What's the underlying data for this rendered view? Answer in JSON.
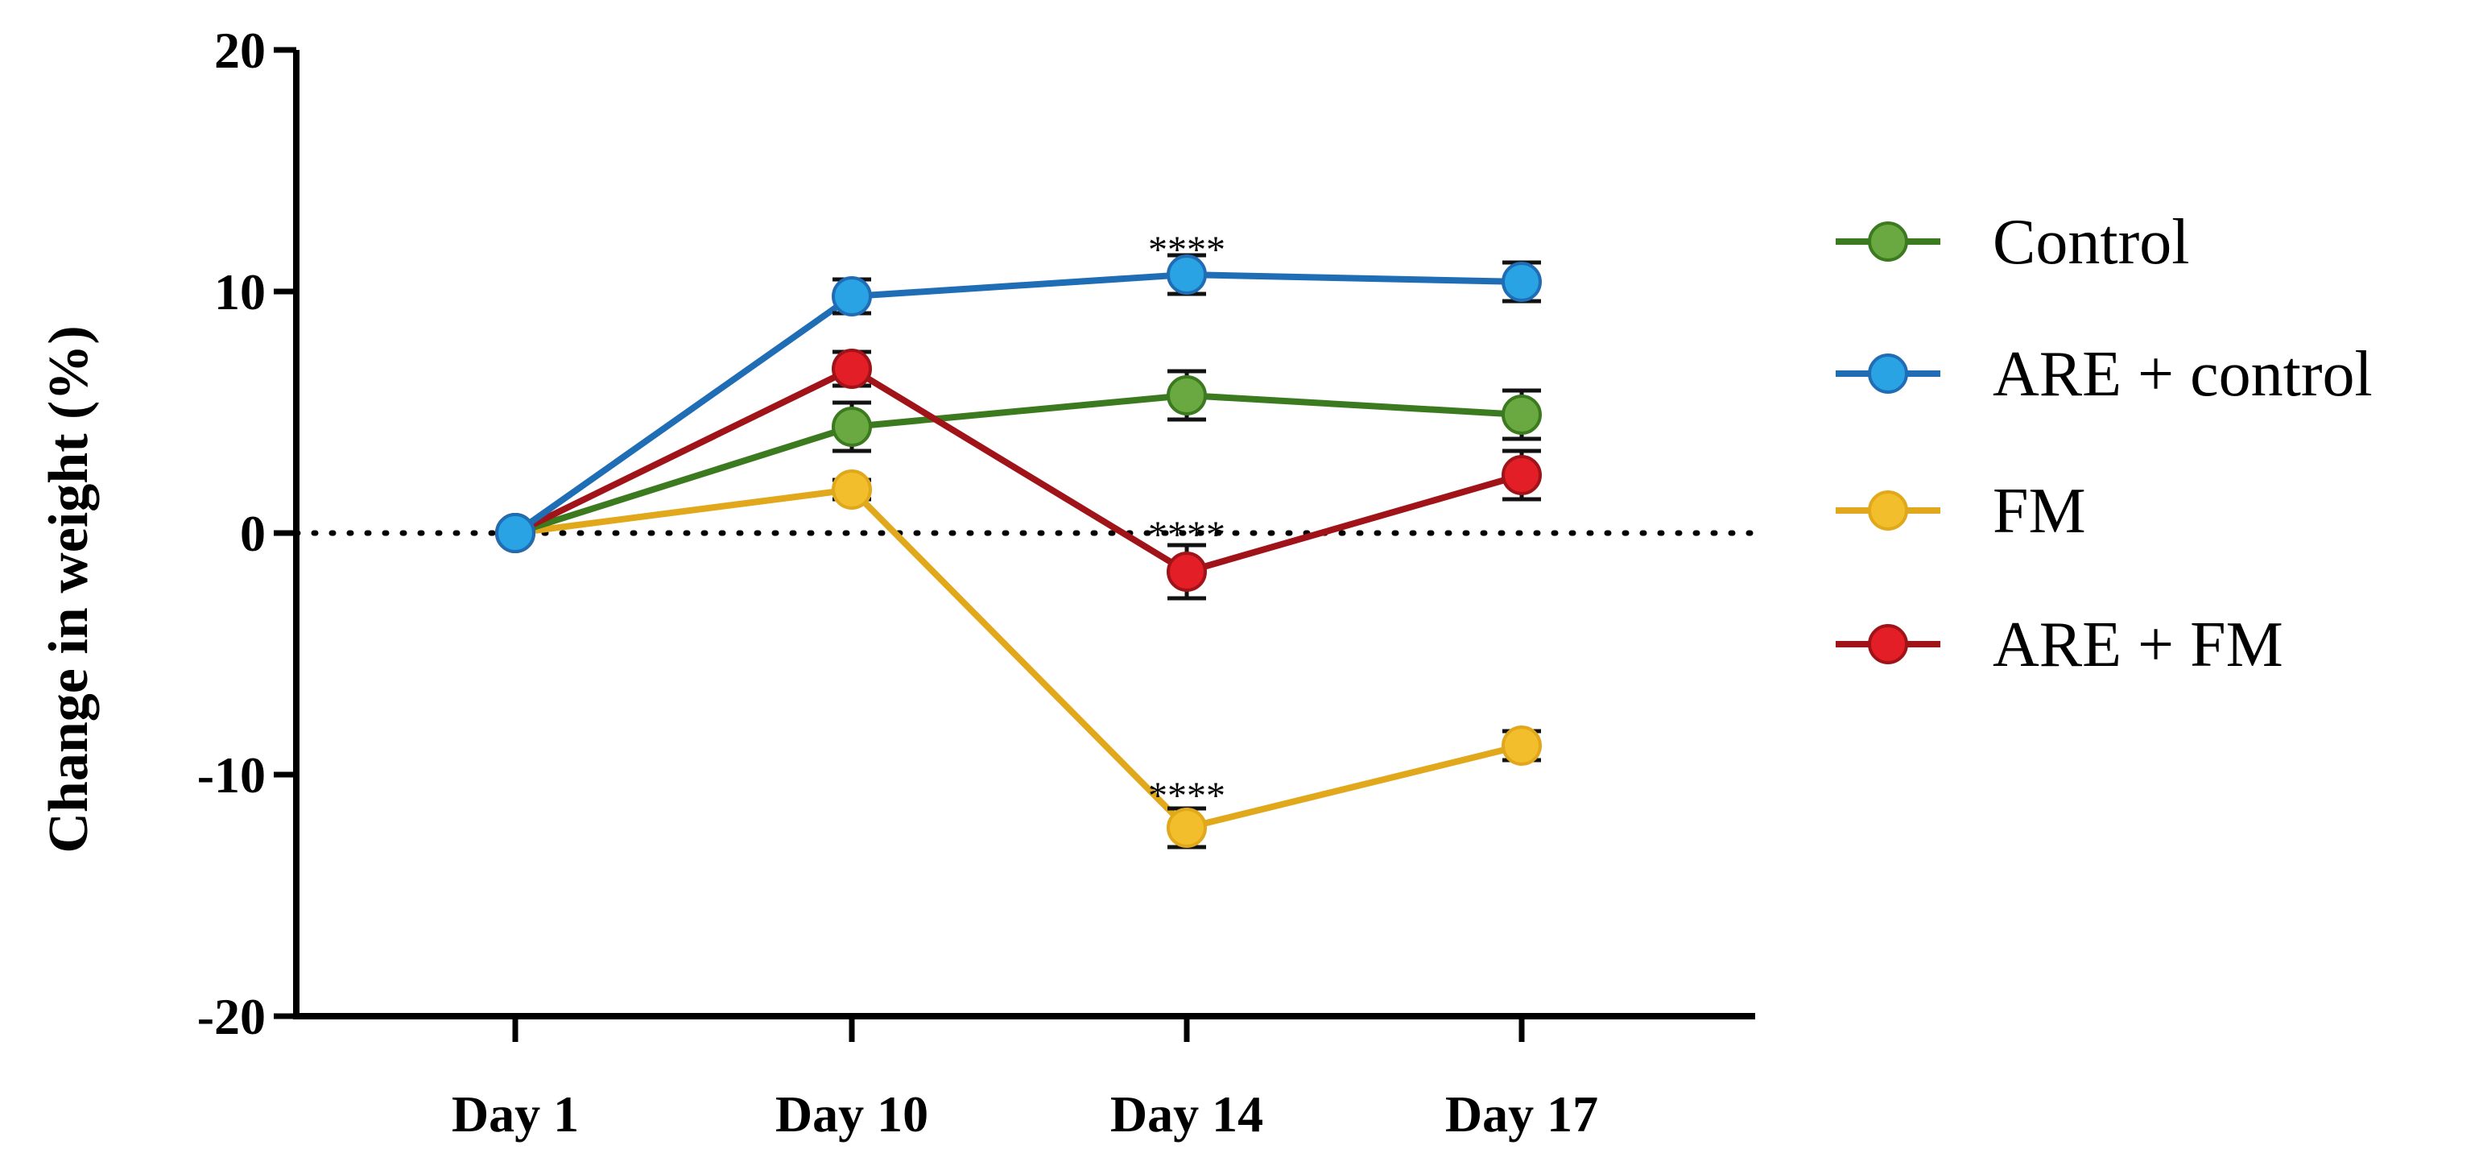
{
  "chart_data": {
    "type": "line",
    "title": "",
    "xlabel": "",
    "ylabel": "Change in weight (%)",
    "categories": [
      "Day 1",
      "Day 10",
      "Day 14",
      "Day 17"
    ],
    "ylim": [
      -20,
      20
    ],
    "yticks": [
      20,
      10,
      0,
      -10,
      -20
    ],
    "ytick_labels": [
      "20",
      "10",
      "0",
      "-10",
      "-20"
    ],
    "grid": false,
    "reference_line": 0,
    "legend_position": "right",
    "series": [
      {
        "name": "Control",
        "line_color": "#3b7a1e",
        "marker_color": "#6aa842",
        "values": [
          0,
          4.4,
          5.7,
          4.9
        ],
        "errors": [
          0,
          1.0,
          1.0,
          1.0
        ]
      },
      {
        "name": "ARE + control",
        "line_color": "#1f6db5",
        "marker_color": "#29a3e3",
        "values": [
          0,
          9.8,
          10.7,
          10.4
        ],
        "errors": [
          0,
          0.7,
          0.8,
          0.8
        ]
      },
      {
        "name": "FM",
        "line_color": "#e0a81a",
        "marker_color": "#f2be2c",
        "values": [
          0,
          1.8,
          -12.2,
          -8.8
        ],
        "errors": [
          0,
          0.4,
          0.8,
          0.6
        ]
      },
      {
        "name": "ARE + FM",
        "line_color": "#a01318",
        "marker_color": "#e41e26",
        "values": [
          0,
          6.8,
          -1.6,
          2.4
        ],
        "errors": [
          0,
          0.7,
          1.1,
          1.0
        ]
      }
    ],
    "annotations": [
      {
        "text": "****",
        "category": "Day 14",
        "y": 12.0
      },
      {
        "text": "****",
        "category": "Day 14",
        "y": 0.2
      },
      {
        "text": "****",
        "category": "Day 14",
        "y": -10.6
      }
    ]
  }
}
